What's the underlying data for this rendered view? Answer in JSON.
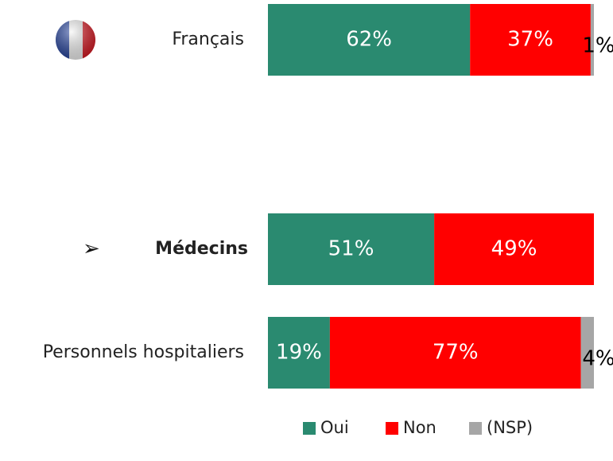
{
  "chart_data": {
    "type": "stacked_bar_horizontal",
    "categories": [
      "Français",
      "Médecins",
      "Personnels hospitaliers"
    ],
    "series": [
      {
        "name": "Oui",
        "color": "#2a8a70",
        "values": [
          62,
          51,
          19
        ],
        "value_labels": [
          "62%",
          "51%",
          "19%"
        ]
      },
      {
        "name": "Non",
        "color": "#ff0000",
        "values": [
          37,
          49,
          77
        ],
        "value_labels": [
          "37%",
          "49%",
          "77%"
        ]
      },
      {
        "name": "(NSP)",
        "color": "#a6a6a6",
        "values": [
          1,
          null,
          4
        ],
        "value_labels": [
          "1%",
          null,
          "4%"
        ]
      }
    ],
    "xlim": [
      0,
      100
    ],
    "legend": "bottom"
  }
}
